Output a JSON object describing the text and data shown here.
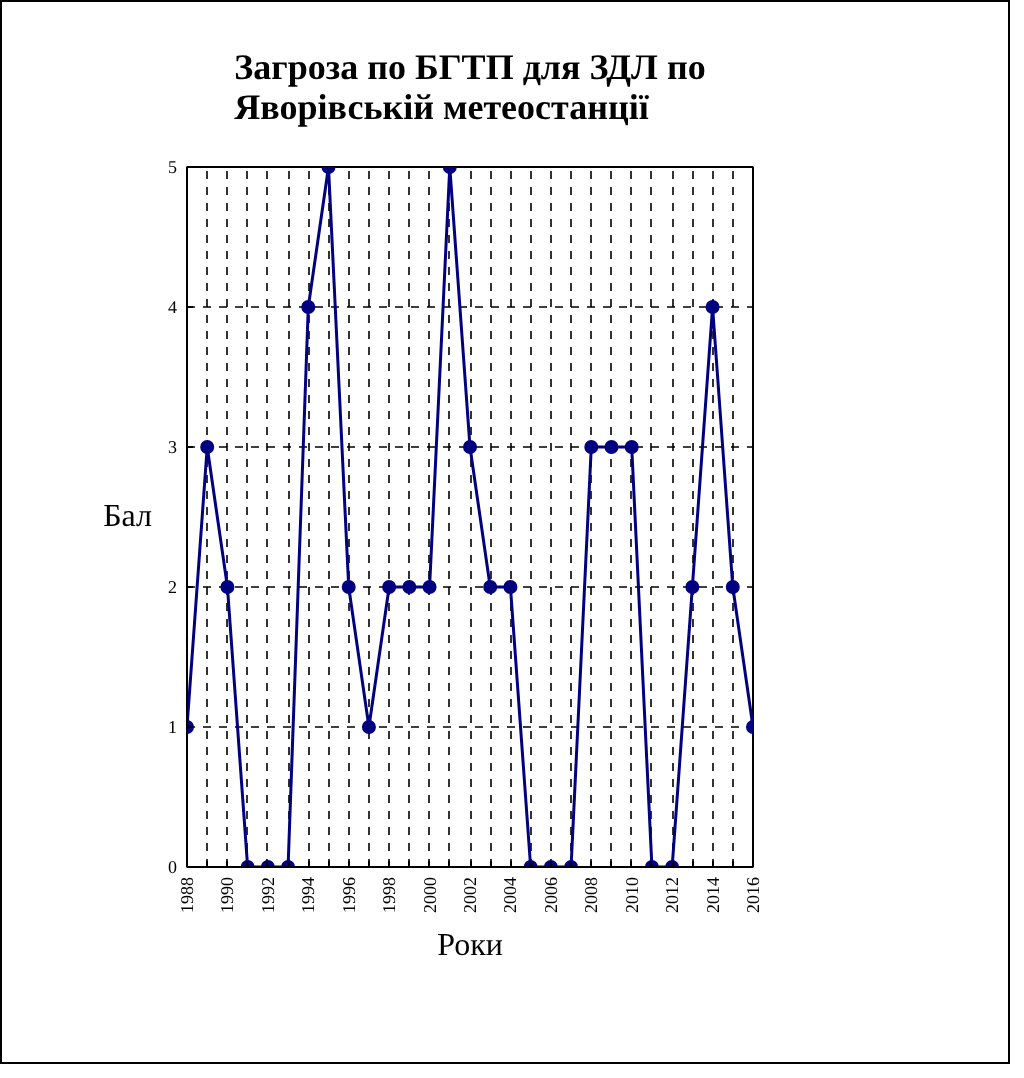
{
  "chart_data": {
    "type": "line",
    "title": "Загроза по БГТП для ЗДЛ по\nЯворівській метеостанції",
    "xlabel": "Роки",
    "ylabel": "Бал",
    "x": [
      1988,
      1989,
      1990,
      1991,
      1992,
      1993,
      1994,
      1995,
      1996,
      1997,
      1998,
      1999,
      2000,
      2001,
      2002,
      2003,
      2004,
      2005,
      2006,
      2007,
      2008,
      2009,
      2010,
      2011,
      2012,
      2013,
      2014,
      2015,
      2016
    ],
    "series": [
      {
        "color": "#000080",
        "values": [
          1,
          3,
          2,
          0,
          0,
          0,
          4,
          5,
          2,
          1,
          2,
          2,
          2,
          5,
          3,
          2,
          2,
          0,
          0,
          0,
          3,
          3,
          3,
          0,
          0,
          2,
          4,
          2,
          1
        ]
      }
    ],
    "xlim": [
      1988,
      2016
    ],
    "xticks": [
      1988,
      {
        "value": 1989,
        "label": null
      },
      1990,
      {
        "value": 1991,
        "label": null
      },
      1992,
      {
        "value": 1993,
        "label": null
      },
      1994,
      {
        "value": 1995,
        "label": null
      },
      1996,
      {
        "value": 1997,
        "label": null
      },
      1998,
      {
        "value": 1999,
        "label": null
      },
      2000,
      {
        "value": 2001,
        "label": null
      },
      2002,
      {
        "value": 2003,
        "label": null
      },
      2004,
      {
        "value": 2005,
        "label": null
      },
      2006,
      {
        "value": 2007,
        "label": null
      },
      2008,
      {
        "value": 2009,
        "label": null
      },
      2010,
      {
        "value": 2011,
        "label": null
      },
      2012,
      {
        "value": 2013,
        "label": null
      },
      2014,
      {
        "value": 2015,
        "label": null
      },
      2016
    ],
    "ylim": [
      0,
      5
    ],
    "yticks": [
      0,
      1,
      2,
      3,
      4,
      5
    ],
    "grid": true,
    "marker": "circle",
    "line_style": "solid"
  }
}
